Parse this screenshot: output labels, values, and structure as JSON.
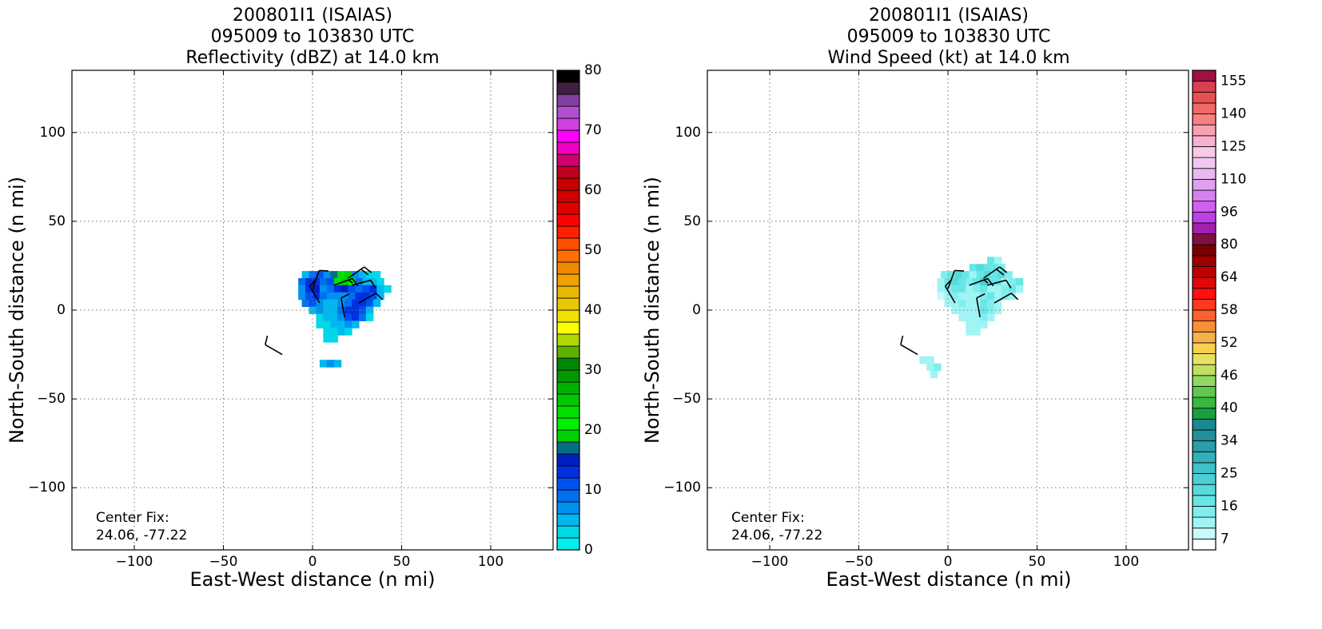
{
  "chart_data": [
    {
      "type": "heatmap",
      "title": [
        "200801I1 (ISAIAS)",
        "095009 to 103830 UTC",
        "Reflectivity (dBZ) at 14.0 km"
      ],
      "xlabel": "East-West distance (n mi)",
      "ylabel": "North-South distance (n mi)",
      "annotation": [
        "Center Fix:",
        "24.06, -77.22"
      ],
      "xlim": [
        -135,
        135
      ],
      "ylim": [
        -135,
        135
      ],
      "xticks": [
        {
          "value": -100,
          "label": "−100"
        },
        {
          "value": -50,
          "label": "−50"
        },
        0,
        50,
        100
      ],
      "yticks": [
        {
          "value": -100,
          "label": "−100"
        },
        {
          "value": -50,
          "label": "−50"
        },
        0,
        50,
        100
      ],
      "grid": true,
      "colorbar": {
        "bounds": [
          0,
          2,
          4,
          6,
          8,
          10,
          12,
          14,
          16,
          18,
          20,
          22,
          24,
          26,
          28,
          30,
          32,
          34,
          36,
          38,
          40,
          42,
          44,
          46,
          48,
          50,
          52,
          54,
          56,
          58,
          60,
          62,
          64,
          66,
          68,
          70,
          72,
          74,
          76,
          78,
          80
        ],
        "colors": [
          "#00f0f0",
          "#00d8e8",
          "#00b8f0",
          "#0090f0",
          "#0070f0",
          "#0050f0",
          "#0030e0",
          "#0020c0",
          "#007080",
          "#00d000",
          "#00f000",
          "#00e000",
          "#00c800",
          "#00b000",
          "#009800",
          "#008800",
          "#60b000",
          "#b0d800",
          "#ffff00",
          "#f0e000",
          "#e8c800",
          "#e8b800",
          "#f0a000",
          "#f08800",
          "#ff7000",
          "#ff5000",
          "#ff2000",
          "#ff0000",
          "#e00000",
          "#d00000",
          "#c80000",
          "#c00020",
          "#d00070",
          "#f000c0",
          "#ff00ff",
          "#d040e0",
          "#b050d0",
          "#8040a0",
          "#402040",
          "#000000"
        ],
        "ticks": [
          0,
          10,
          20,
          30,
          40,
          50,
          60,
          70,
          80
        ]
      },
      "rows": [
        {
          "y": 20,
          "x0": -4,
          "values": [
            4,
            8,
            10,
            6,
            16,
            22,
            18,
            6,
            4,
            2,
            2
          ]
        },
        {
          "y": 16,
          "x0": -6,
          "values": [
            8,
            12,
            12,
            8,
            10,
            22,
            24,
            20,
            8,
            4,
            4,
            2
          ]
        },
        {
          "y": 12,
          "x0": -6,
          "values": [
            6,
            12,
            14,
            6,
            8,
            12,
            14,
            10,
            8,
            10,
            12,
            4,
            2
          ]
        },
        {
          "y": 8,
          "x0": -6,
          "values": [
            6,
            10,
            12,
            8,
            6,
            6,
            6,
            8,
            12,
            12,
            10,
            4
          ]
        },
        {
          "y": 4,
          "x0": -4,
          "values": [
            8,
            10,
            6,
            4,
            4,
            6,
            8,
            12,
            12,
            10,
            4
          ]
        },
        {
          "y": 0,
          "x0": 0,
          "values": [
            4,
            6,
            4,
            4,
            8,
            12,
            12,
            10,
            4
          ]
        },
        {
          "y": -4,
          "x0": 4,
          "values": [
            2,
            4,
            4,
            6,
            10,
            12,
            8,
            2
          ]
        },
        {
          "y": -8,
          "x0": 4,
          "values": [
            2,
            2,
            4,
            4,
            6,
            4
          ]
        },
        {
          "y": -12,
          "x0": 8,
          "values": [
            2,
            2,
            4,
            2
          ]
        },
        {
          "y": -16,
          "x0": 8,
          "values": [
            2,
            2
          ]
        },
        {
          "y": -30,
          "x0": 6,
          "values": [
            4,
            6,
            4
          ]
        }
      ],
      "barbs": [
        {
          "x": -17,
          "y": -25,
          "dir": 300,
          "speed": 10
        },
        {
          "x": 4,
          "y": 4,
          "dir": 330,
          "speed": 10
        },
        {
          "x": 0,
          "y": 12,
          "dir": 20,
          "speed": 10
        },
        {
          "x": 12,
          "y": 14,
          "dir": 70,
          "speed": 15
        },
        {
          "x": 20,
          "y": 18,
          "dir": 55,
          "speed": 20
        },
        {
          "x": 18,
          "y": -4,
          "dir": 350,
          "speed": 10
        },
        {
          "x": 26,
          "y": 4,
          "dir": 60,
          "speed": 10
        },
        {
          "x": 22,
          "y": 14,
          "dir": 75,
          "speed": 10
        }
      ]
    },
    {
      "type": "heatmap",
      "title": [
        "200801I1 (ISAIAS)",
        "095009 to 103830 UTC",
        "Wind Speed (kt) at 14.0 km"
      ],
      "xlabel": "East-West distance (n mi)",
      "ylabel": "North-South distance (n mi)",
      "annotation": [
        "Center Fix:",
        "24.06, -77.22"
      ],
      "xlim": [
        -135,
        135
      ],
      "ylim": [
        -135,
        135
      ],
      "xticks": [
        {
          "value": -100,
          "label": "−100"
        },
        {
          "value": -50,
          "label": "−50"
        },
        0,
        50,
        100
      ],
      "yticks": [
        {
          "value": -100,
          "label": "−100"
        },
        {
          "value": -50,
          "label": "−50"
        },
        0,
        50,
        100
      ],
      "grid": true,
      "colorbar": {
        "bounds": [
          4,
          7,
          10,
          13,
          16,
          19,
          22,
          25,
          28,
          31,
          34,
          36,
          38,
          40,
          42,
          44,
          46,
          48,
          50,
          52,
          54,
          56,
          58,
          60,
          62,
          64,
          69,
          75,
          80,
          85,
          90,
          96,
          101,
          105,
          110,
          115,
          120,
          125,
          130,
          135,
          140,
          145,
          150,
          155,
          160
        ],
        "colors": [
          "#ffffff",
          "#c8fafa",
          "#a0f4f4",
          "#80eeee",
          "#68e6e6",
          "#58dada",
          "#4ccfd2",
          "#40c0c8",
          "#34b0ba",
          "#2a9eaa",
          "#20909c",
          "#1a8890",
          "#18a040",
          "#38b840",
          "#60c850",
          "#90d860",
          "#c0e060",
          "#e8e060",
          "#f8d050",
          "#f8b048",
          "#f89038",
          "#ff6030",
          "#ff3820",
          "#ff1010",
          "#e00808",
          "#c00000",
          "#a00000",
          "#780000",
          "#801040",
          "#a020b0",
          "#c040e8",
          "#d060f0",
          "#d880f0",
          "#e0a0f0",
          "#e8b8f0",
          "#f0c8f0",
          "#f8c8e8",
          "#f8b0d0",
          "#f8a0b0",
          "#f88080",
          "#f06868",
          "#e85050",
          "#d84050",
          "#a01040"
        ],
        "ticks": [
          7,
          16,
          25,
          34,
          40,
          46,
          52,
          58,
          64,
          80,
          96,
          110,
          125,
          140,
          155
        ]
      },
      "rows": [
        {
          "y": 28,
          "x0": 24,
          "values": [
            16,
            12
          ]
        },
        {
          "y": 24,
          "x0": 14,
          "values": [
            16,
            20,
            18,
            16,
            14
          ]
        },
        {
          "y": 20,
          "x0": -2,
          "values": [
            14,
            18,
            20,
            16,
            12,
            16,
            20,
            18,
            20,
            14
          ]
        },
        {
          "y": 16,
          "x0": -4,
          "values": [
            12,
            16,
            20,
            16,
            14,
            16,
            22,
            18,
            16,
            12,
            14,
            18
          ]
        },
        {
          "y": 12,
          "x0": -4,
          "values": [
            10,
            14,
            18,
            16,
            12,
            14,
            18,
            12,
            10,
            14,
            16,
            12
          ]
        },
        {
          "y": 8,
          "x0": -4,
          "values": [
            8,
            12,
            14,
            12,
            10,
            12,
            14,
            16,
            12,
            14,
            10
          ]
        },
        {
          "y": 4,
          "x0": 0,
          "values": [
            10,
            12,
            14,
            10,
            12,
            16,
            14,
            12
          ]
        },
        {
          "y": 0,
          "x0": 4,
          "values": [
            10,
            12,
            10,
            12,
            16,
            14,
            12
          ]
        },
        {
          "y": -4,
          "x0": 8,
          "values": [
            10,
            10,
            12,
            14,
            12
          ]
        },
        {
          "y": -8,
          "x0": 12,
          "values": [
            10,
            12,
            10
          ]
        },
        {
          "y": -12,
          "x0": 12,
          "values": [
            10,
            10
          ]
        },
        {
          "y": -28,
          "x0": -14,
          "values": [
            10,
            12
          ]
        },
        {
          "y": -32,
          "x0": -10,
          "values": [
            12,
            14
          ]
        },
        {
          "y": -36,
          "x0": -8,
          "values": [
            10
          ]
        }
      ],
      "barbs": [
        {
          "x": -17,
          "y": -25,
          "dir": 300,
          "speed": 10
        },
        {
          "x": 4,
          "y": 4,
          "dir": 330,
          "speed": 10
        },
        {
          "x": 0,
          "y": 12,
          "dir": 20,
          "speed": 10
        },
        {
          "x": 12,
          "y": 14,
          "dir": 70,
          "speed": 15
        },
        {
          "x": 20,
          "y": 18,
          "dir": 55,
          "speed": 20
        },
        {
          "x": 18,
          "y": -4,
          "dir": 350,
          "speed": 10
        },
        {
          "x": 26,
          "y": 4,
          "dir": 60,
          "speed": 10
        },
        {
          "x": 22,
          "y": 14,
          "dir": 75,
          "speed": 10
        }
      ]
    }
  ]
}
